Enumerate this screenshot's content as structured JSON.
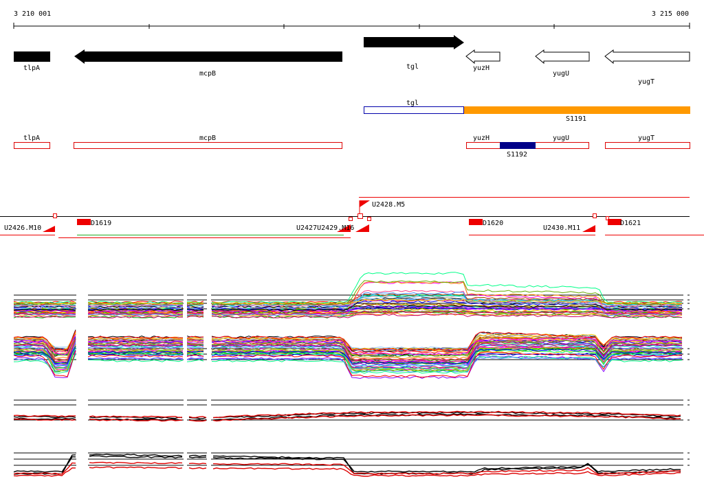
{
  "ruler": {
    "start_label": "3 210 001",
    "end_label": "3 215 000"
  },
  "genes": [
    {
      "id": "tlpA",
      "label": "tlpA",
      "strand": "fwd",
      "filled": true
    },
    {
      "id": "mcpB",
      "label": "mcpB",
      "strand": "rev",
      "filled": true
    },
    {
      "id": "tgl",
      "label": "tgl",
      "strand": "fwd",
      "filled": true
    },
    {
      "id": "yuzH",
      "label": "yuzH",
      "strand": "rev",
      "filled": false
    },
    {
      "id": "yugU",
      "label": "yugU",
      "strand": "rev",
      "filled": false
    },
    {
      "id": "yugT",
      "label": "yugT",
      "strand": "rev",
      "filled": false
    }
  ],
  "transcript_units": [
    {
      "id": "tgl",
      "label": "tgl"
    },
    {
      "id": "S1191",
      "label": "S1191"
    }
  ],
  "units": [
    {
      "id": "tlpA",
      "label": "tlpA"
    },
    {
      "id": "mcpB",
      "label": "mcpB"
    },
    {
      "id": "yuzH",
      "label": "yuzH"
    },
    {
      "id": "S1192",
      "label": "S1192"
    },
    {
      "id": "yugU",
      "label": "yugU"
    },
    {
      "id": "yugT",
      "label": "yugT"
    }
  ],
  "upshifts": [
    {
      "id": "U2428.M5",
      "label": "U2428.M5"
    },
    {
      "id": "U2426.M10",
      "label": "U2426.M10"
    },
    {
      "id": "U2427.U2429.M16",
      "label": "U2427U2429.M16"
    },
    {
      "id": "U2430.M11",
      "label": "U2430.M11"
    }
  ],
  "downshifts": [
    {
      "id": "D1619",
      "label": "D1619"
    },
    {
      "id": "D1620",
      "label": "D1620"
    },
    {
      "id": "D1621",
      "label": "D1621"
    }
  ],
  "colors": {
    "gene_fill": "#000000",
    "unit_outline": "#dd0000",
    "transcript_blue": "#0000aa",
    "transcript_orange": "#ff9900",
    "segment_red": "#ee0000",
    "signal_red": "#dd0000"
  }
}
